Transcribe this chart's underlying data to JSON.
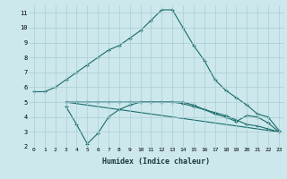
{
  "xlabel": "Humidex (Indice chaleur)",
  "bg_color": "#cce8ec",
  "grid_color": "#aacdd4",
  "line_color": "#1a6b6b",
  "xlim": [
    -0.5,
    23.5
  ],
  "ylim": [
    2,
    11.5
  ],
  "xticks": [
    0,
    1,
    2,
    3,
    4,
    5,
    6,
    7,
    8,
    9,
    10,
    11,
    12,
    13,
    14,
    15,
    16,
    17,
    18,
    19,
    20,
    21,
    22,
    23
  ],
  "yticks": [
    2,
    3,
    4,
    5,
    6,
    7,
    8,
    9,
    10,
    11
  ],
  "line1_x": [
    0,
    1,
    2,
    3,
    4,
    5,
    6,
    7,
    8,
    9,
    10,
    11,
    12,
    13,
    14,
    15,
    16,
    17,
    18,
    19,
    20,
    21,
    22,
    23
  ],
  "line1_y": [
    5.7,
    5.7,
    6.0,
    6.5,
    7.0,
    7.5,
    8.0,
    8.5,
    8.8,
    9.3,
    9.8,
    10.5,
    11.2,
    11.2,
    10.0,
    8.8,
    7.8,
    6.5,
    5.8,
    5.3,
    4.8,
    4.2,
    4.0,
    3.1
  ],
  "line2_x": [
    3,
    4,
    5,
    6,
    7,
    8,
    9,
    10,
    11,
    12,
    13,
    14,
    15,
    16,
    17,
    18,
    19,
    20,
    21,
    22,
    23
  ],
  "line2_y": [
    4.7,
    3.5,
    2.2,
    2.9,
    4.0,
    4.5,
    4.8,
    5.0,
    5.0,
    5.0,
    5.0,
    4.9,
    4.7,
    4.5,
    4.2,
    4.0,
    3.7,
    4.1,
    4.0,
    3.6,
    3.0
  ],
  "line3_x": [
    3,
    23
  ],
  "line3_y": [
    5.0,
    3.0
  ],
  "line4_x": [
    3,
    4,
    5,
    6,
    7,
    8,
    9,
    10,
    11,
    12,
    13,
    14,
    15,
    16,
    17,
    18,
    19,
    20,
    21,
    22,
    23
  ],
  "line4_y": [
    5.0,
    5.0,
    5.0,
    5.0,
    5.0,
    5.0,
    5.0,
    5.0,
    5.0,
    5.0,
    5.0,
    5.0,
    4.8,
    4.5,
    4.3,
    4.1,
    3.8,
    3.5,
    3.4,
    3.2,
    3.0
  ]
}
